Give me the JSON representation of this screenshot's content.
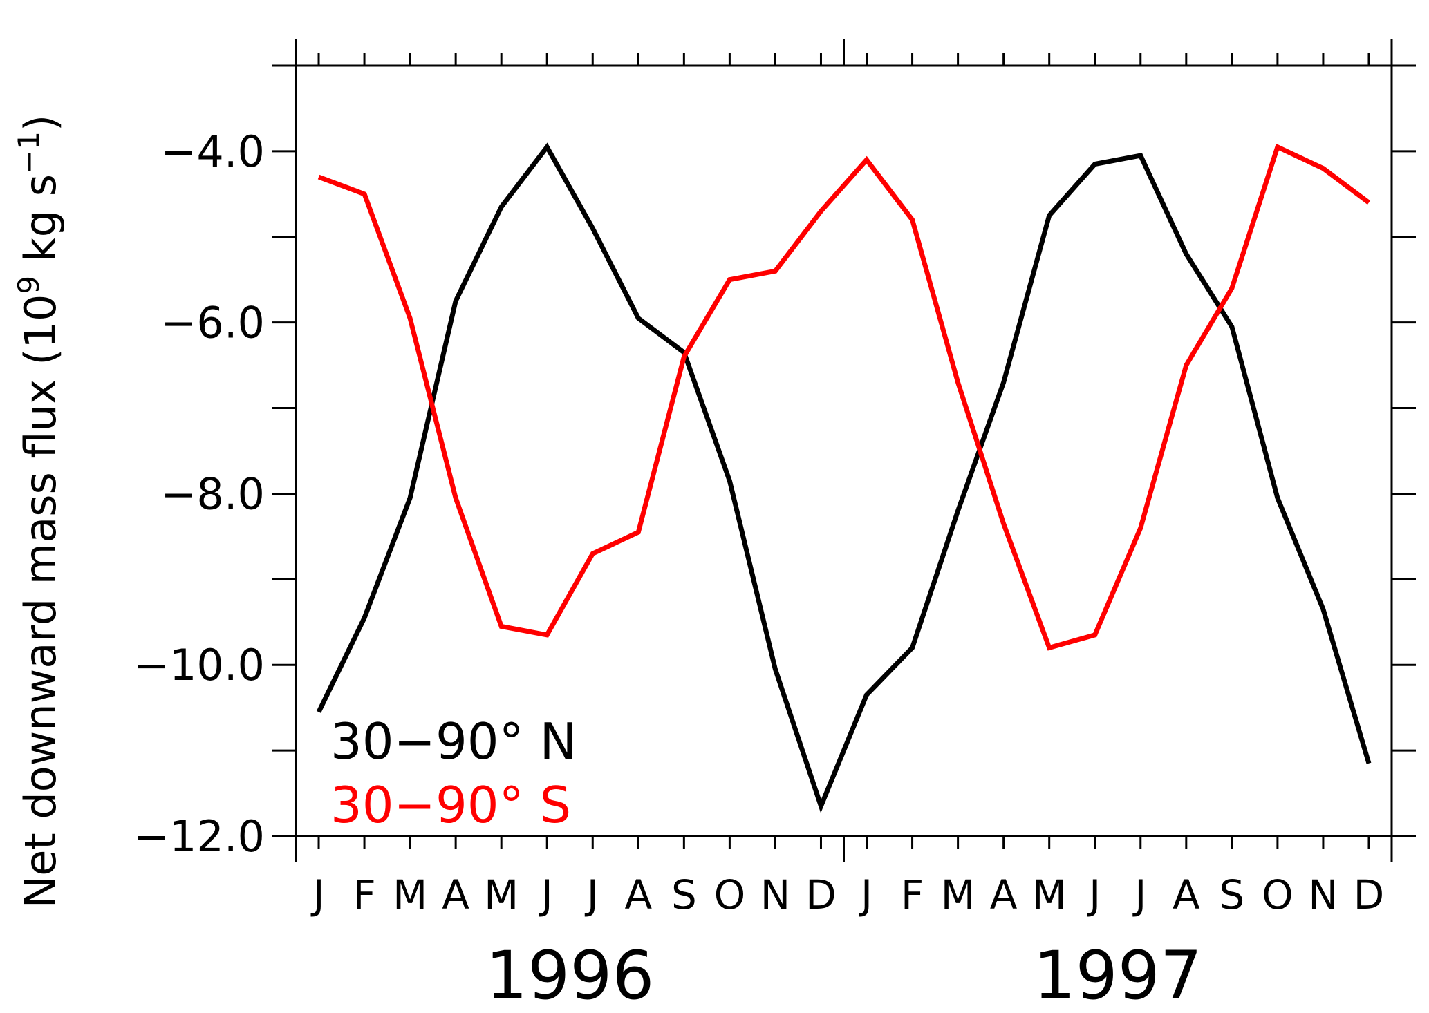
{
  "chart_data": {
    "type": "line",
    "ylabel_main": "Net downward mass flux (10",
    "ylabel_exp": "9",
    "ylabel_mid": " kg s",
    "ylabel_exp2": "−1",
    "ylabel_end": ")",
    "ylim": [
      -12.0,
      -3.0
    ],
    "yticks_major": [
      -4.0,
      -6.0,
      -8.0,
      -10.0,
      -12.0
    ],
    "ytick_labels": [
      "−4.0",
      "−6.0",
      "−8.0",
      "−10.0",
      "−12.0"
    ],
    "yticks_minor": [
      -3.0,
      -5.0,
      -7.0,
      -9.0,
      -11.0
    ],
    "months": [
      "J",
      "F",
      "M",
      "A",
      "M",
      "J",
      "J",
      "A",
      "S",
      "O",
      "N",
      "D",
      "J",
      "F",
      "M",
      "A",
      "M",
      "J",
      "J",
      "A",
      "S",
      "O",
      "N",
      "D"
    ],
    "years": [
      "1996",
      "1997"
    ],
    "series": [
      {
        "name": "30−90° N",
        "color": "#000000",
        "values": [
          -10.55,
          -9.45,
          -8.05,
          -5.75,
          -4.65,
          -3.95,
          -4.9,
          -5.95,
          -6.35,
          -7.85,
          -10.05,
          -11.65,
          -10.35,
          -9.8,
          -8.2,
          -6.7,
          -4.75,
          -4.15,
          -4.05,
          -5.2,
          -6.05,
          -8.05,
          -9.35,
          -11.15
        ]
      },
      {
        "name": "30−90° S",
        "color": "#ff0000",
        "values": [
          -4.3,
          -4.5,
          -5.95,
          -8.05,
          -9.55,
          -9.65,
          -8.7,
          -8.45,
          -6.4,
          -5.5,
          -5.4,
          -4.7,
          -4.1,
          -4.8,
          -6.7,
          -8.35,
          -9.8,
          -9.65,
          -8.4,
          -6.5,
          -5.6,
          -3.95,
          -4.2,
          -4.6
        ]
      }
    ]
  }
}
